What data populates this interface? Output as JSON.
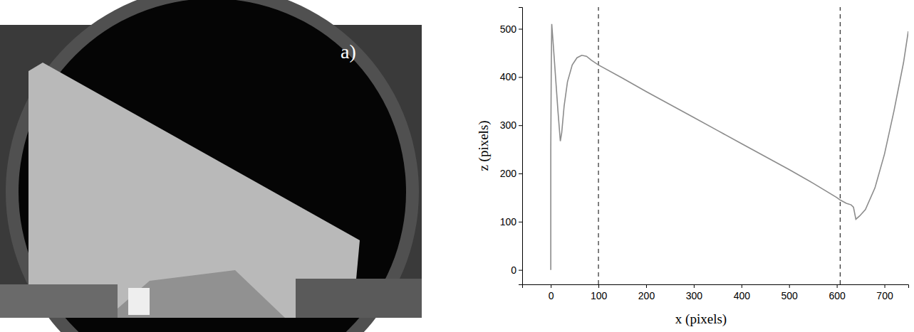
{
  "photo": {
    "label": "a)"
  },
  "chart_data": {
    "type": "line",
    "x": [
      0,
      0,
      1,
      2,
      5,
      10,
      15,
      20,
      23,
      28,
      35,
      45,
      55,
      65,
      75,
      85,
      100,
      150,
      200,
      250,
      300,
      350,
      400,
      450,
      500,
      550,
      600,
      607,
      620,
      630,
      635,
      640,
      648,
      660,
      680,
      700,
      720,
      740,
      750
    ],
    "values": [
      0,
      250,
      420,
      510,
      470,
      400,
      330,
      267,
      285,
      340,
      390,
      425,
      440,
      445,
      443,
      435,
      425,
      398,
      370,
      343,
      316,
      289,
      262,
      235,
      208,
      180,
      150,
      145,
      138,
      135,
      130,
      105,
      112,
      125,
      170,
      240,
      330,
      430,
      495
    ],
    "color": "#8c8c8c",
    "x_label": "x (pixels)",
    "y_label": "z (pixels)",
    "xlim": [
      -60,
      750
    ],
    "xticks": [
      0,
      100,
      200,
      300,
      400,
      500,
      600,
      700
    ],
    "ylim": [
      -30,
      545
    ],
    "yticks": [
      0,
      100,
      200,
      300,
      400,
      500
    ],
    "vlines": [
      100,
      607
    ],
    "line_style": "dashed",
    "grid": false
  }
}
